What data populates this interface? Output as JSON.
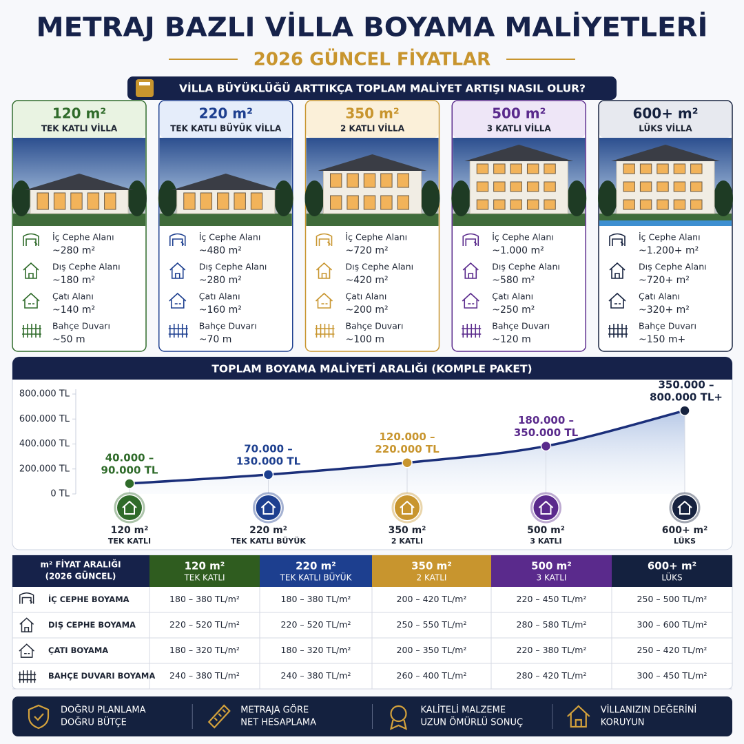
{
  "header": {
    "title": "METRAJ BAZLI VİLLA BOYAMA MALİYETLERİ",
    "subtitle": "2026 GÜNCEL FİYATLAR",
    "question": "VİLLA BÜYÜKLÜĞÜ ARTTIKÇA TOPLAM MALİYET ARTIŞI NASIL OLUR?"
  },
  "cards": [
    {
      "size": "120 m²",
      "type": "TEK KATLI VİLLA",
      "color": "#2f6b2a",
      "tint": "#e9f3e2",
      "items": [
        {
          "label": "İç Cephe Alanı",
          "value": "~280 m²"
        },
        {
          "label": "Dış Cephe Alanı",
          "value": "~180 m²"
        },
        {
          "label": "Çatı Alanı",
          "value": "~140 m²"
        },
        {
          "label": "Bahçe Duvarı",
          "value": "~50 m"
        }
      ]
    },
    {
      "size": "220 m²",
      "type": "TEK KATLI BÜYÜK VİLLA",
      "color": "#1d3f8f",
      "tint": "#e5edfa",
      "items": [
        {
          "label": "İç Cephe Alanı",
          "value": "~480 m²"
        },
        {
          "label": "Dış Cephe Alanı",
          "value": "~280 m²"
        },
        {
          "label": "Çatı Alanı",
          "value": "~160 m²"
        },
        {
          "label": "Bahçe Duvarı",
          "value": "~70 m"
        }
      ]
    },
    {
      "size": "350 m²",
      "type": "2 KATLI VİLLA",
      "color": "#c8952e",
      "tint": "#fbf0d9",
      "items": [
        {
          "label": "İç Cephe Alanı",
          "value": "~720 m²"
        },
        {
          "label": "Dış Cephe Alanı",
          "value": "~420 m²"
        },
        {
          "label": "Çatı Alanı",
          "value": "~200 m²"
        },
        {
          "label": "Bahçe Duvarı",
          "value": "~100 m"
        }
      ]
    },
    {
      "size": "500 m²",
      "type": "3 KATLI VİLLA",
      "color": "#5a2a8c",
      "tint": "#eee6f7",
      "items": [
        {
          "label": "İç Cephe Alanı",
          "value": "~1.000 m²"
        },
        {
          "label": "Dış Cephe Alanı",
          "value": "~580 m²"
        },
        {
          "label": "Çatı Alanı",
          "value": "~250 m²"
        },
        {
          "label": "Bahçe Duvarı",
          "value": "~120 m"
        }
      ]
    },
    {
      "size": "600+ m²",
      "type": "LÜKS VİLLA",
      "color": "#16223f",
      "tint": "#e7e9ef",
      "items": [
        {
          "label": "İç Cephe Alanı",
          "value": "~1.200+ m²"
        },
        {
          "label": "Dış Cephe Alanı",
          "value": "~720+ m²"
        },
        {
          "label": "Çatı Alanı",
          "value": "~320+ m²"
        },
        {
          "label": "Bahçe Duvarı",
          "value": "~150 m+"
        }
      ]
    }
  ],
  "chart_data": {
    "type": "line",
    "title": "TOPLAM BOYAMA MALİYETİ ARALIĞI (KOMPLE PAKET)",
    "categories": [
      "120 m²",
      "220 m²",
      "350 m²",
      "500 m²",
      "600+ m²"
    ],
    "category_notes": [
      "TEK KATLI",
      "TEK KATLI BÜYÜK",
      "2 KATLI",
      "3 KATLI",
      "LÜKS"
    ],
    "values": [
      83000,
      155000,
      250000,
      383000,
      667000
    ],
    "annotations": [
      [
        "40.000 –",
        "90.000 TL"
      ],
      [
        "70.000 –",
        "130.000 TL"
      ],
      [
        "120.000 –",
        "220.000 TL"
      ],
      [
        "180.000 –",
        "350.000 TL"
      ],
      [
        "350.000 –",
        "800.000 TL+"
      ]
    ],
    "colors": [
      "#2f6b2a",
      "#1d3f8f",
      "#c8952e",
      "#5a2a8c",
      "#16223f"
    ],
    "color": "#1b2f7a",
    "ylim": [
      0,
      800000
    ],
    "yticks": [
      {
        "value": 0,
        "label": "0 TL"
      },
      {
        "value": 200000,
        "label": "200.000 TL"
      },
      {
        "value": 400000,
        "label": "400.000 TL"
      },
      {
        "value": 600000,
        "label": "600.000 TL"
      },
      {
        "value": 800000,
        "label": "800.000 TL"
      }
    ]
  },
  "table": {
    "corner": [
      "m² FİYAT ARALIĞI",
      "(2026 GÜNCEL)"
    ],
    "columns": [
      {
        "size": "120 m²",
        "type": "TEK KATLI",
        "color": "#2f5c1f"
      },
      {
        "size": "220 m²",
        "type": "TEK KATLI BÜYÜK",
        "color": "#1d3f8f"
      },
      {
        "size": "350 m²",
        "type": "2 KATLI",
        "color": "#c8952e"
      },
      {
        "size": "500 m²",
        "type": "3 KATLI",
        "color": "#5a2a8c"
      },
      {
        "size": "600+ m²",
        "type": "LÜKS",
        "color": "#14213f"
      }
    ],
    "rows": [
      {
        "label": "İÇ CEPHE BOYAMA",
        "cells": [
          "180 – 380 TL/m²",
          "180 – 380 TL/m²",
          "200 – 420 TL/m²",
          "220 – 450 TL/m²",
          "250 – 500 TL/m²"
        ]
      },
      {
        "label": "DIŞ CEPHE BOYAMA",
        "cells": [
          "220 – 520 TL/m²",
          "220 – 520 TL/m²",
          "250 – 550 TL/m²",
          "280 – 580 TL/m²",
          "300 – 600 TL/m²"
        ]
      },
      {
        "label": "ÇATI BOYAMA",
        "cells": [
          "180 – 320 TL/m²",
          "180 – 320 TL/m²",
          "200 – 350 TL/m²",
          "220 – 380 TL/m²",
          "250 – 420 TL/m²"
        ]
      },
      {
        "label": "BAHÇE DUVARI BOYAMA",
        "cells": [
          "240 – 380 TL/m²",
          "240 – 380 TL/m²",
          "260 – 400 TL/m²",
          "280 – 420 TL/m²",
          "300 – 450 TL/m²"
        ]
      }
    ]
  },
  "footer": [
    [
      "DOĞRU PLANLAMA",
      "DOĞRU BÜTÇE"
    ],
    [
      "METRAJA GÖRE",
      "NET HESAPLAMA"
    ],
    [
      "KALİTELİ MALZEME",
      "UZUN ÖMÜRLÜ SONUÇ"
    ],
    [
      "VİLLANIZIN DEĞERİNİ",
      "KORUYUN"
    ]
  ]
}
